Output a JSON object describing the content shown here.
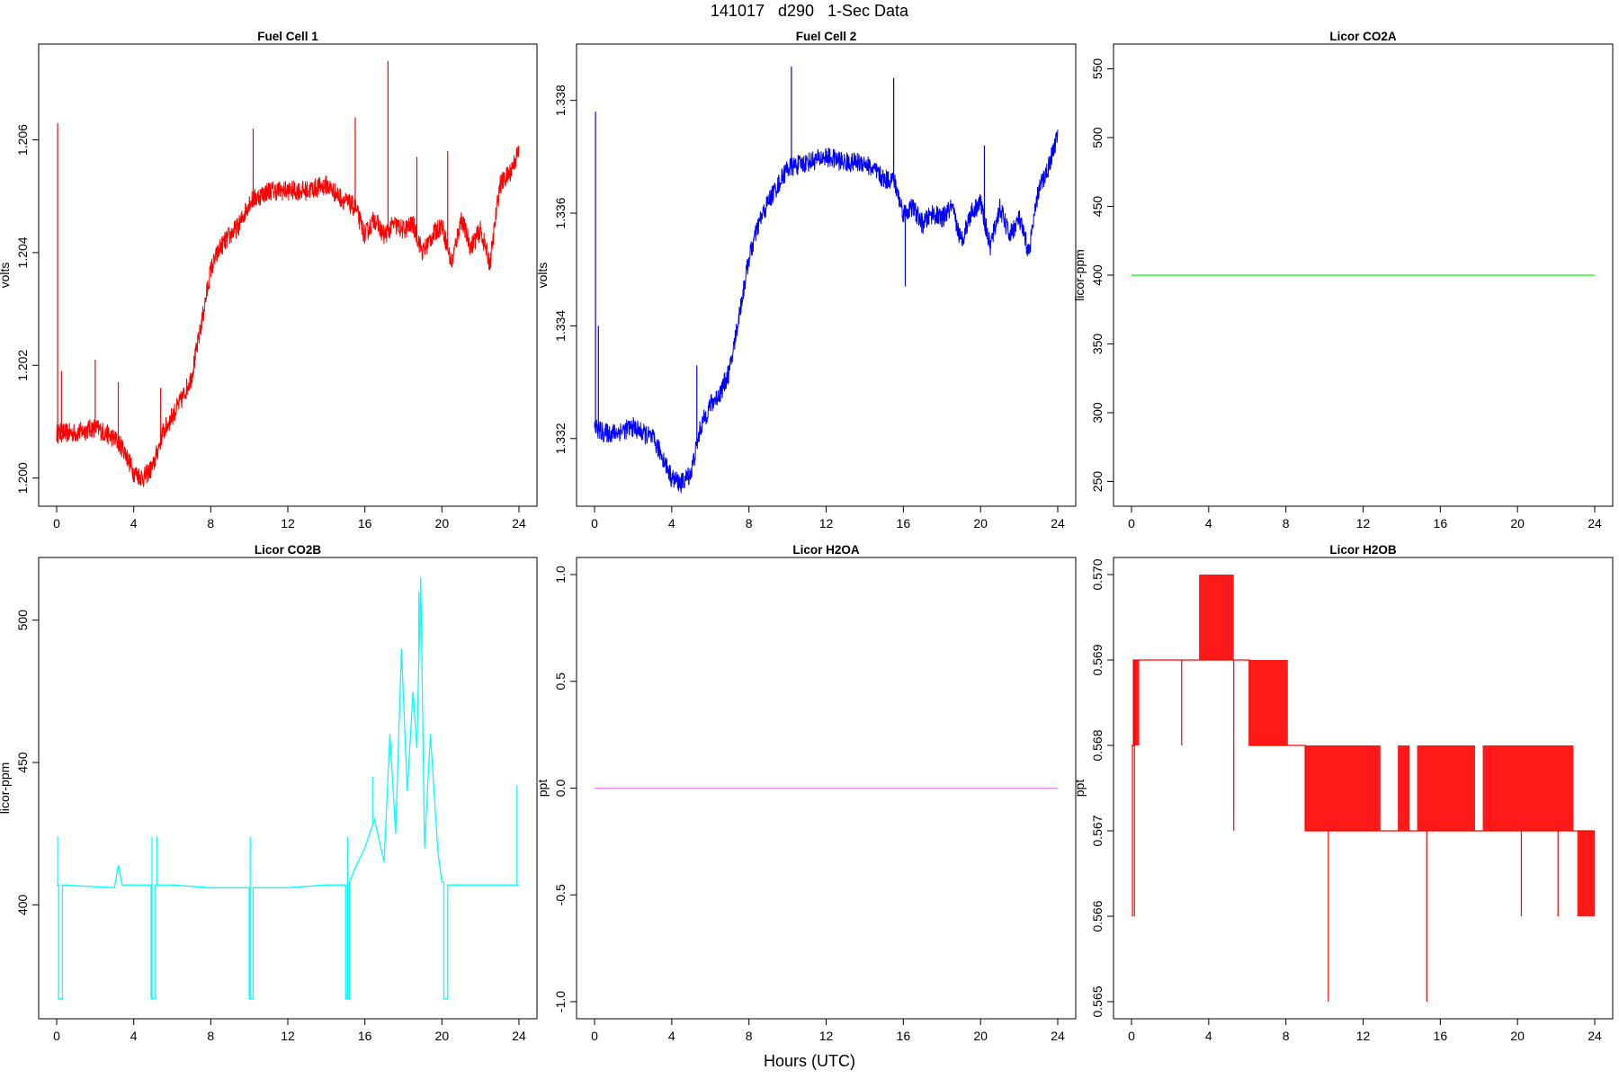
{
  "page": {
    "title": "141017   d290   1-Sec Data",
    "x_title": "Hours (UTC)"
  },
  "chart_data": [
    {
      "type": "line",
      "title": "Fuel Cell 1",
      "xlabel": "",
      "ylabel": "volts",
      "xlim": [
        0,
        24
      ],
      "ylim": [
        1.1995,
        1.2077
      ],
      "x_ticks": [
        0,
        4,
        8,
        12,
        16,
        20,
        24
      ],
      "y_ticks": [
        1.2,
        1.202,
        1.204,
        1.206
      ],
      "y_tick_labels": [
        "1.200",
        "1.202",
        "1.204",
        "1.206"
      ],
      "color": "#ff0000",
      "noise": 0.00018,
      "series": [
        {
          "x": [
            0,
            0.5,
            1,
            2,
            3,
            3.5,
            4,
            4.5,
            5,
            5.5,
            6,
            6.5,
            7,
            7.5,
            8,
            8.5,
            9,
            9.5,
            10,
            11,
            12,
            13,
            14,
            15,
            15.5,
            16,
            16.5,
            17,
            17.5,
            18,
            18.5,
            19,
            19.5,
            20,
            20.5,
            21,
            21.5,
            22,
            22.5,
            23,
            23.5,
            24
          ],
          "y": [
            1.2008,
            1.2008,
            1.2008,
            1.2009,
            1.2007,
            1.2005,
            1.2001,
            1.2,
            1.2002,
            1.2008,
            1.2011,
            1.2014,
            1.2018,
            1.2027,
            1.2037,
            1.2041,
            1.2043,
            1.2045,
            1.2049,
            1.2051,
            1.2051,
            1.2051,
            1.2052,
            1.2049,
            1.2048,
            1.2043,
            1.2046,
            1.2043,
            1.2045,
            1.2044,
            1.2045,
            1.204,
            1.2043,
            1.2045,
            1.2038,
            1.2046,
            1.2041,
            1.2044,
            1.2038,
            1.2052,
            1.2054,
            1.2058
          ]
        }
      ],
      "spikes": [
        [
          0.05,
          1.2063
        ],
        [
          0.25,
          1.2019
        ],
        [
          2.0,
          1.2021
        ],
        [
          3.2,
          1.2017
        ],
        [
          5.4,
          1.2016
        ],
        [
          10.2,
          1.2062
        ],
        [
          15.5,
          1.2064
        ],
        [
          17.2,
          1.2074
        ],
        [
          18.7,
          1.2057
        ],
        [
          20.3,
          1.2058
        ]
      ]
    },
    {
      "type": "line",
      "title": "Fuel Cell 2",
      "xlabel": "",
      "ylabel": "volts",
      "xlim": [
        0,
        24
      ],
      "ylim": [
        1.3308,
        1.339
      ],
      "x_ticks": [
        0,
        4,
        8,
        12,
        16,
        20,
        24
      ],
      "y_ticks": [
        1.332,
        1.334,
        1.336,
        1.338
      ],
      "y_tick_labels": [
        "1.332",
        "1.334",
        "1.336",
        "1.338"
      ],
      "color": "#0000ff",
      "noise": 0.00018,
      "series": [
        {
          "x": [
            0,
            0.5,
            1,
            2,
            3,
            3.5,
            4,
            4.5,
            5,
            5.5,
            6,
            6.5,
            7,
            7.5,
            8,
            8.5,
            9,
            9.5,
            10,
            11,
            12,
            13,
            14,
            15,
            15.5,
            16,
            16.5,
            17,
            17.5,
            18,
            18.5,
            19,
            19.5,
            20,
            20.5,
            21,
            21.5,
            22,
            22.5,
            23,
            23.5,
            24
          ],
          "y": [
            1.3322,
            1.3321,
            1.3321,
            1.3322,
            1.332,
            1.3317,
            1.3313,
            1.3312,
            1.3314,
            1.3322,
            1.3326,
            1.3328,
            1.3332,
            1.3342,
            1.3352,
            1.3358,
            1.3362,
            1.3365,
            1.3368,
            1.3369,
            1.337,
            1.3369,
            1.3369,
            1.3366,
            1.3366,
            1.336,
            1.3361,
            1.3358,
            1.336,
            1.3359,
            1.3361,
            1.3355,
            1.336,
            1.3362,
            1.3354,
            1.3361,
            1.3356,
            1.3359,
            1.3353,
            1.3364,
            1.3368,
            1.3374
          ]
        }
      ],
      "spikes": [
        [
          0.05,
          1.3378
        ],
        [
          0.2,
          1.334
        ],
        [
          5.3,
          1.3333
        ],
        [
          10.2,
          1.3386
        ],
        [
          15.5,
          1.3384
        ],
        [
          16.1,
          1.3347
        ],
        [
          20.2,
          1.3372
        ]
      ]
    },
    {
      "type": "line",
      "title": "Licor CO2A",
      "xlabel": "",
      "ylabel": "licor-ppm",
      "xlim": [
        0,
        24
      ],
      "ylim": [
        232,
        568
      ],
      "x_ticks": [
        0,
        4,
        8,
        12,
        16,
        20,
        24
      ],
      "y_ticks": [
        250,
        300,
        350,
        400,
        450,
        500,
        550
      ],
      "y_tick_labels": [
        "250",
        "300",
        "350",
        "400",
        "450",
        "500",
        "550"
      ],
      "color": "#00ff00",
      "noise": 0,
      "series": [
        {
          "x": [
            0,
            24
          ],
          "y": [
            400,
            400
          ]
        }
      ],
      "spikes": []
    },
    {
      "type": "line",
      "title": "Licor CO2B",
      "xlabel": "",
      "ylabel": "licor-ppm",
      "xlim": [
        0,
        24
      ],
      "ylim": [
        360,
        522
      ],
      "x_ticks": [
        0,
        4,
        8,
        12,
        16,
        20,
        24
      ],
      "y_ticks": [
        400,
        450,
        500
      ],
      "y_tick_labels": [
        "400",
        "450",
        "500"
      ],
      "color": "#00ffff",
      "noise": 0,
      "series": [
        {
          "x": [
            0,
            0.05,
            0.1,
            0.1,
            0.3,
            0.3,
            3.0,
            3.2,
            3.4,
            4.9,
            4.9,
            5.1,
            5.1,
            5.3,
            6.0,
            8.0,
            10.0,
            10.0,
            10.2,
            10.2,
            12.0,
            14.0,
            15.0,
            15.0,
            15.2,
            15.2,
            15.5,
            16.0,
            16.5,
            17.0,
            17.3,
            17.6,
            17.9,
            18.2,
            18.5,
            18.7,
            18.9,
            19.1,
            19.4,
            19.8,
            20.0,
            20.1,
            20.1,
            20.3,
            20.3,
            22.0,
            23.5,
            23.9,
            24
          ],
          "y": [
            407,
            407,
            407,
            367,
            367,
            407,
            406,
            414,
            407,
            407,
            367,
            367,
            407,
            407,
            407,
            406,
            406,
            367,
            367,
            406,
            406,
            407,
            407,
            367,
            367,
            408,
            413,
            420,
            430,
            415,
            460,
            425,
            490,
            440,
            475,
            455,
            515,
            420,
            460,
            418,
            408,
            408,
            367,
            367,
            407,
            407,
            407,
            407,
            407
          ]
        }
      ],
      "spikes": [
        [
          0.05,
          424
        ],
        [
          4.95,
          424
        ],
        [
          5.2,
          424
        ],
        [
          10.05,
          424
        ],
        [
          15.1,
          424
        ],
        [
          16.4,
          445
        ],
        [
          18.8,
          510
        ],
        [
          23.9,
          442
        ]
      ]
    },
    {
      "type": "line",
      "title": "Licor H2OA",
      "xlabel": "",
      "ylabel": "ppt",
      "xlim": [
        0,
        24
      ],
      "ylim": [
        -1.08,
        1.08
      ],
      "x_ticks": [
        0,
        4,
        8,
        12,
        16,
        20,
        24
      ],
      "y_ticks": [
        -1.0,
        -0.5,
        0.0,
        0.5,
        1.0
      ],
      "y_tick_labels": [
        "-1.0",
        "-0.5",
        "0.0",
        "0.5",
        "1.0"
      ],
      "color": "#ee82ee",
      "noise": 0,
      "series": [
        {
          "x": [
            0,
            24
          ],
          "y": [
            0,
            0
          ]
        }
      ],
      "spikes": []
    },
    {
      "type": "line",
      "title": "Licor H2OB",
      "xlabel": "",
      "ylabel": "ppt",
      "xlim": [
        0,
        24
      ],
      "ylim": [
        0.5648,
        0.5702
      ],
      "x_ticks": [
        0,
        4,
        8,
        12,
        16,
        20,
        24
      ],
      "y_ticks": [
        0.565,
        0.566,
        0.567,
        0.568,
        0.569,
        0.57
      ],
      "y_tick_labels": [
        "0.565",
        "0.566",
        "0.567",
        "0.568",
        "0.569",
        "0.570"
      ],
      "color": "#ff0000",
      "noise": 0,
      "series": [
        {
          "x": [
            0,
            0.1,
            0.1,
            0.3,
            0.3,
            2.6,
            3.5,
            3.5,
            5.3,
            5.3,
            6.1,
            6.1,
            8.1,
            8.1,
            9.0,
            9.0,
            24
          ],
          "y": [
            0.568,
            0.568,
            0.569,
            0.569,
            0.569,
            0.569,
            0.569,
            0.569,
            0.569,
            0.569,
            0.569,
            0.568,
            0.568,
            0.568,
            0.568,
            0.567,
            0.567
          ]
        }
      ],
      "bands": [
        [
          0.1,
          0.4,
          0.568,
          0.569
        ],
        [
          3.5,
          5.3,
          0.569,
          0.57
        ],
        [
          6.1,
          8.1,
          0.568,
          0.569
        ],
        [
          8.1,
          9.0,
          0.568,
          0.568
        ],
        [
          9.0,
          12.9,
          0.567,
          0.568
        ],
        [
          13.8,
          14.4,
          0.567,
          0.568
        ],
        [
          14.8,
          17.8,
          0.567,
          0.568
        ],
        [
          18.2,
          22.9,
          0.567,
          0.568
        ],
        [
          23.1,
          24.0,
          0.566,
          0.567
        ]
      ],
      "spikes": [
        [
          2.6,
          0.568
        ],
        [
          5.3,
          0.567
        ],
        [
          10.2,
          0.565
        ],
        [
          15.3,
          0.565
        ],
        [
          20.2,
          0.566
        ],
        [
          22.1,
          0.566
        ],
        [
          0.05,
          0.566
        ],
        [
          0.15,
          0.566
        ]
      ]
    }
  ]
}
